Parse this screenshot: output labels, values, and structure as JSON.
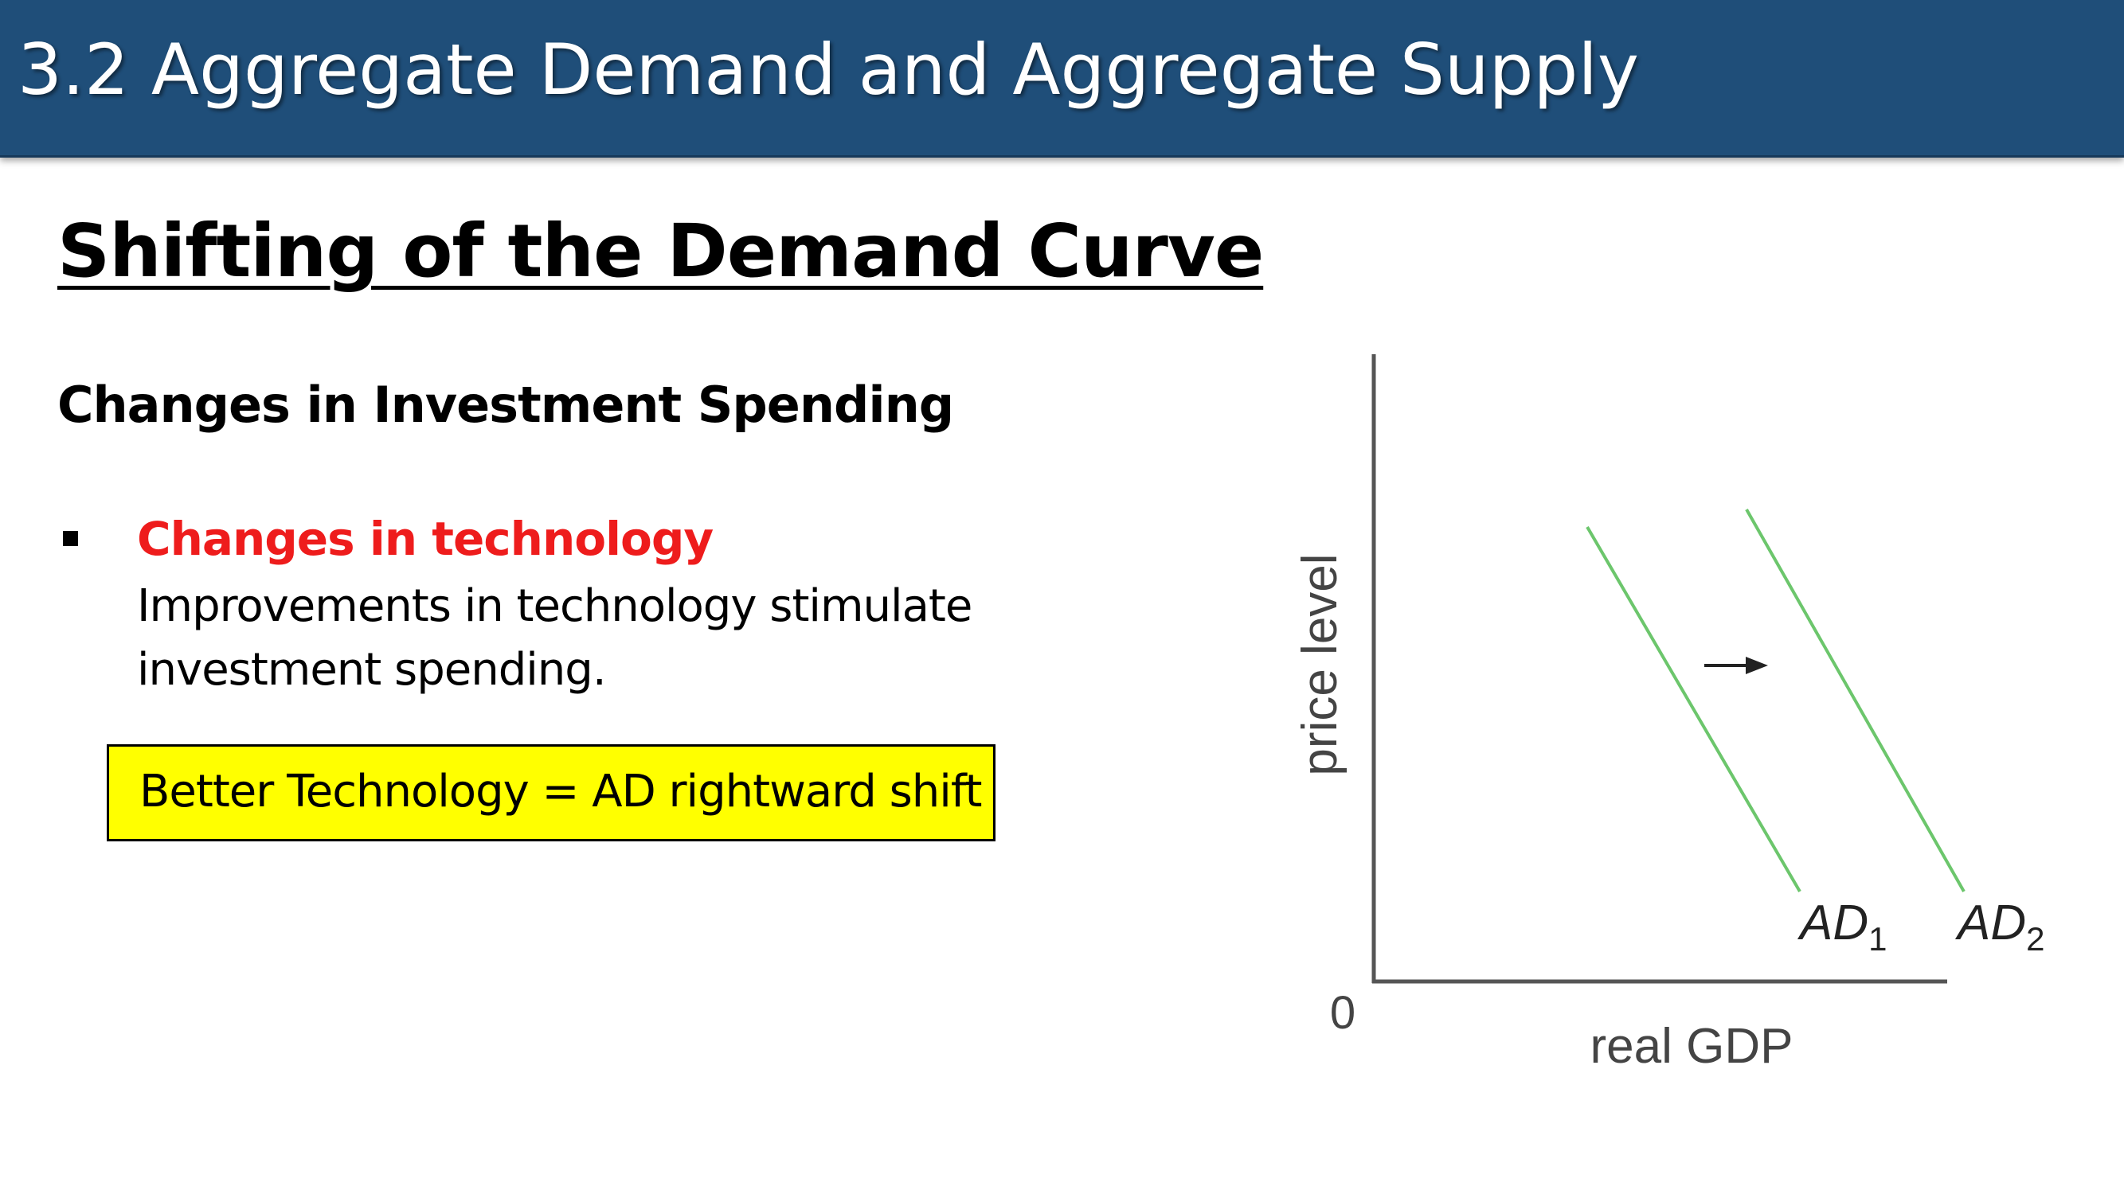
{
  "header": {
    "title": "3.2 Aggregate Demand and Aggregate Supply"
  },
  "main": {
    "heading": "Shifting of the Demand Curve",
    "subheading": "Changes in Investment Spending",
    "bullet": {
      "title": "Changes in technology",
      "body": "Improvements in technology stimulate investment spending."
    },
    "highlight": {
      "text": "Better Technology = AD rightward shift"
    }
  },
  "colors": {
    "header_bg": "#1f4e79",
    "bullet_title": "#ee1c1c",
    "highlight_bg": "#ffff00",
    "curve": "#6cc66c"
  },
  "chart_data": {
    "type": "line",
    "xlabel": "real GDP",
    "ylabel": "price level",
    "origin_label": "0",
    "grid": false,
    "series": [
      {
        "name": "AD1",
        "label_main": "AD",
        "label_sub": "1"
      },
      {
        "name": "AD2",
        "label_main": "AD",
        "label_sub": "2"
      }
    ],
    "annotation": "arrow-right"
  }
}
